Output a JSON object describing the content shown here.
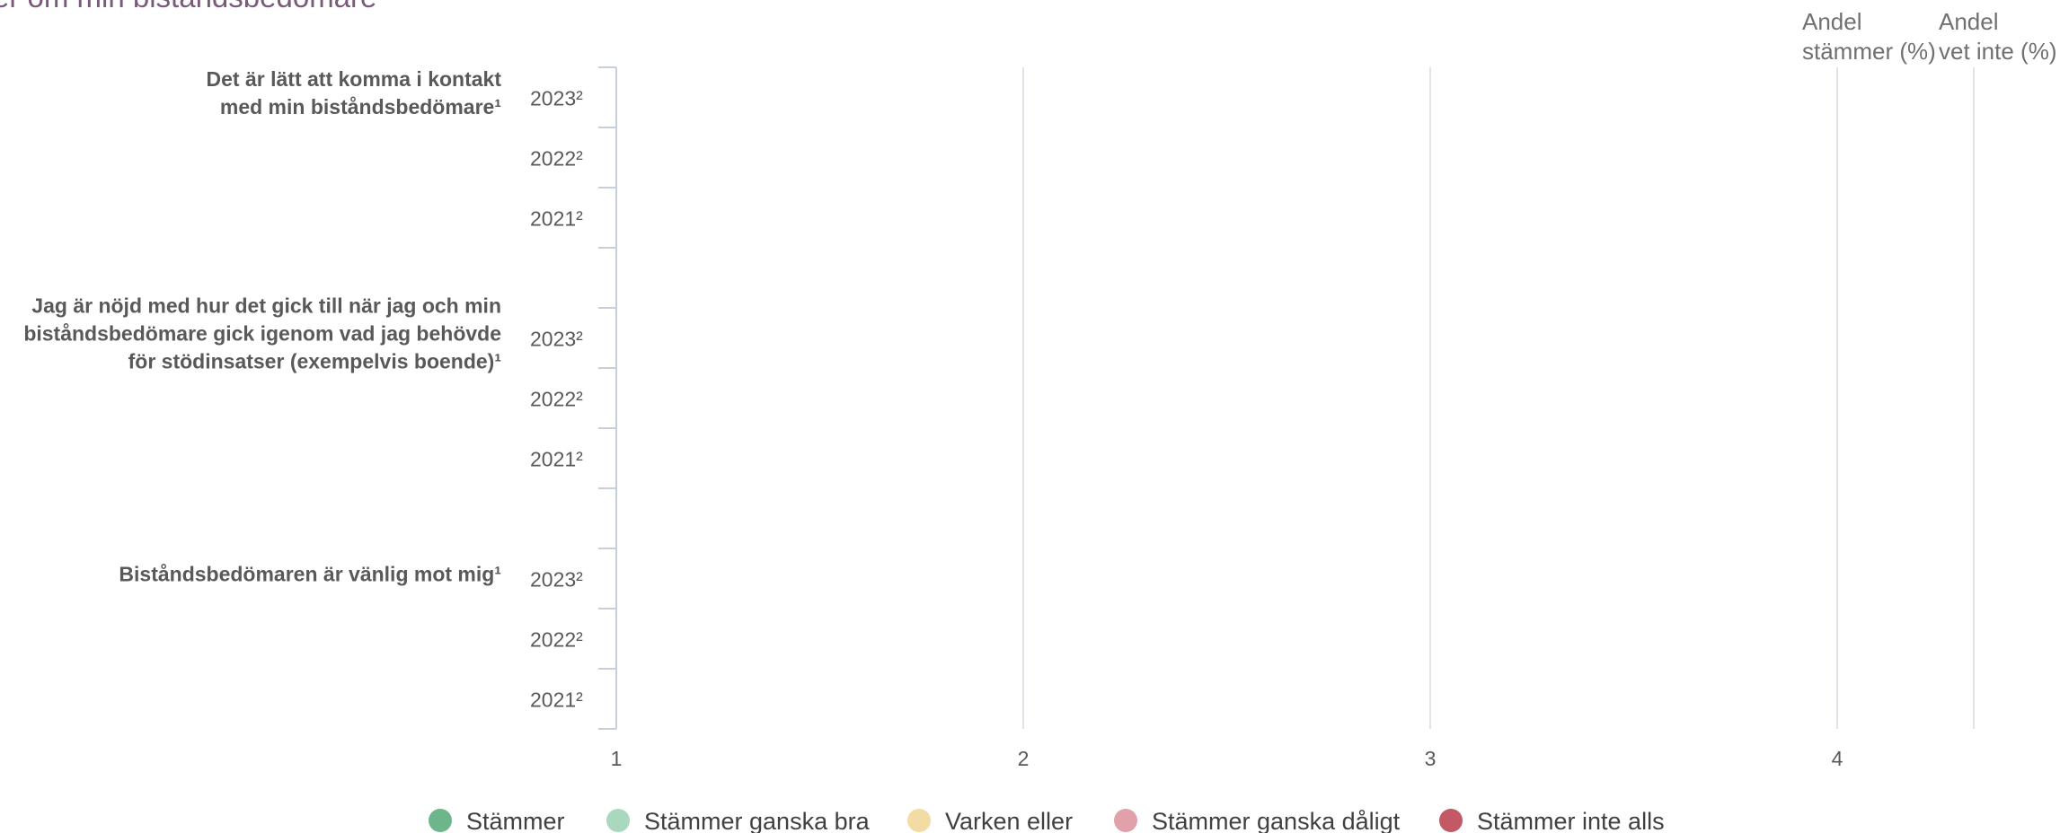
{
  "chart_data": {
    "type": "bar",
    "orientation": "horizontal",
    "stacked": true,
    "title": "er om min biståndsbedömare",
    "xlim": [
      1,
      4
    ],
    "x_ticks": [
      "1",
      "2",
      "3",
      "4"
    ],
    "grid": true,
    "legend_position": "bottom",
    "extra_columns": [
      "Andel stämmer (%)",
      "Andel vet inte (%)"
    ],
    "questions": [
      {
        "label_lines": [
          "Det är lätt att komma i kontakt",
          "med min biståndsbedömare¹"
        ],
        "years": [
          "2023²",
          "2022²",
          "2021²"
        ]
      },
      {
        "label_lines": [
          "Jag är nöjd med hur det gick till när jag och min",
          "biståndsbedömare gick igenom vad jag behövde",
          "för stödinsatser (exempelvis boende)¹"
        ],
        "years": [
          "2023²",
          "2022²",
          "2021²"
        ]
      },
      {
        "label_lines": [
          "Biståndsbedömaren är vänlig mot mig¹"
        ],
        "years": [
          "2023²",
          "2022²",
          "2021²"
        ]
      }
    ],
    "series": [
      {
        "name": "Stämmer",
        "color": "#6db58a"
      },
      {
        "name": "Stämmer ganska bra",
        "color": "#a9d8bf"
      },
      {
        "name": "Varken eller",
        "color": "#f3dca3"
      },
      {
        "name": "Stämmer ganska dåligt",
        "color": "#e0a1ab"
      },
      {
        "name": "Stämmer inte alls",
        "color": "#c25965"
      }
    ]
  }
}
